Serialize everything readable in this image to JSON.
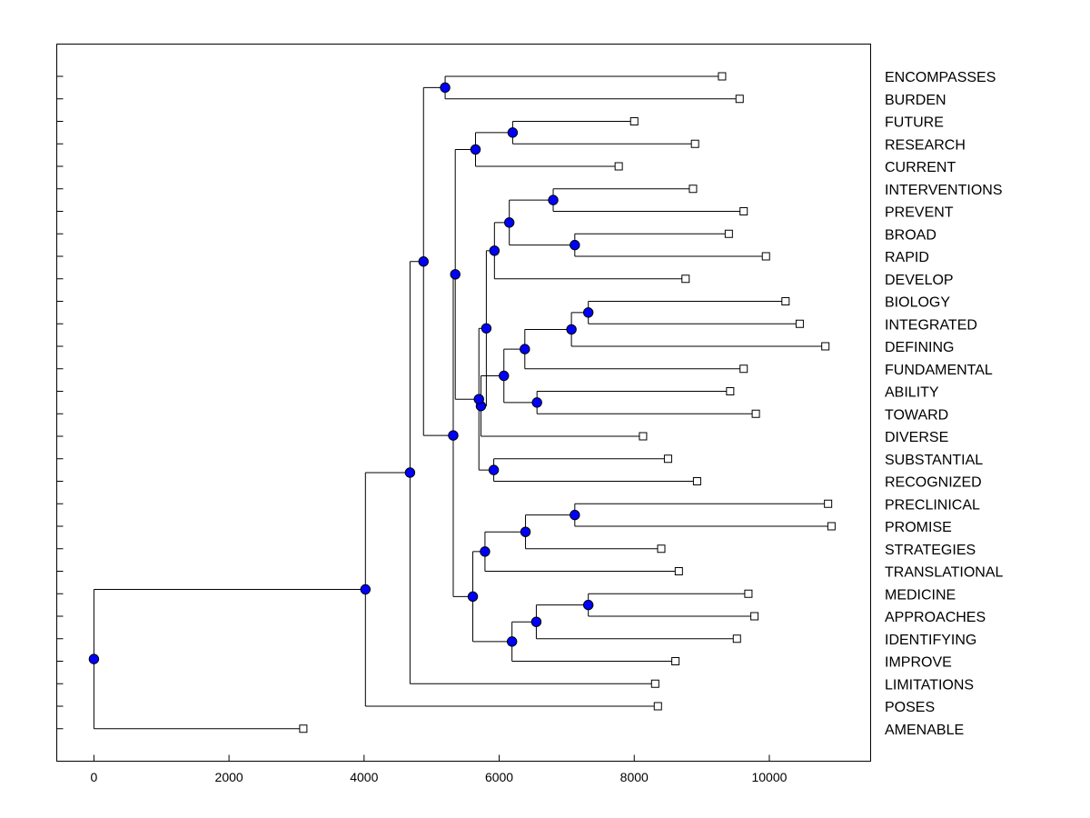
{
  "chart_data": {
    "type": "dendrogram",
    "orientation": "horizontal",
    "title": "",
    "xlabel": "",
    "ylabel": "",
    "xlim": [
      -550,
      11500
    ],
    "xticks": [
      0,
      2000,
      4000,
      6000,
      8000,
      10000
    ],
    "grid": false,
    "colors": {
      "node": "#0000ff",
      "leaf_fill": "#ffffff",
      "line": "#000000"
    },
    "leaves": [
      {
        "label": "ENCOMPASSES",
        "value": 9300
      },
      {
        "label": "BURDEN",
        "value": 9560
      },
      {
        "label": "FUTURE",
        "value": 8000
      },
      {
        "label": "RESEARCH",
        "value": 8900
      },
      {
        "label": "CURRENT",
        "value": 7770
      },
      {
        "label": "INTERVENTIONS",
        "value": 8870
      },
      {
        "label": "PREVENT",
        "value": 9620
      },
      {
        "label": "BROAD",
        "value": 9400
      },
      {
        "label": "RAPID",
        "value": 9950
      },
      {
        "label": "DEVELOP",
        "value": 8760
      },
      {
        "label": "BIOLOGY",
        "value": 10240
      },
      {
        "label": "INTEGRATED",
        "value": 10450
      },
      {
        "label": "DEFINING",
        "value": 10830
      },
      {
        "label": "FUNDAMENTAL",
        "value": 9620
      },
      {
        "label": "ABILITY",
        "value": 9420
      },
      {
        "label": "TOWARD",
        "value": 9800
      },
      {
        "label": "DIVERSE",
        "value": 8130
      },
      {
        "label": "SUBSTANTIAL",
        "value": 8500
      },
      {
        "label": "RECOGNIZED",
        "value": 8930
      },
      {
        "label": "PRECLINICAL",
        "value": 10870
      },
      {
        "label": "PROMISE",
        "value": 10920
      },
      {
        "label": "STRATEGIES",
        "value": 8400
      },
      {
        "label": "TRANSLATIONAL",
        "value": 8660
      },
      {
        "label": "MEDICINE",
        "value": 9690
      },
      {
        "label": "APPROACHES",
        "value": 9780
      },
      {
        "label": "IDENTIFYING",
        "value": 9520
      },
      {
        "label": "IMPROVE",
        "value": 8610
      },
      {
        "label": "LIMITATIONS",
        "value": 8310
      },
      {
        "label": "POSES",
        "value": 8350
      },
      {
        "label": "AMENABLE",
        "value": 3100
      }
    ],
    "merges": [
      {
        "id": "m_enc_bur",
        "value": 5200,
        "children": [
          0,
          1
        ]
      },
      {
        "id": "m_fut_res",
        "value": 6200,
        "children": [
          2,
          3
        ]
      },
      {
        "id": "m_frc",
        "value": 5650,
        "children": [
          "m_fut_res",
          4
        ]
      },
      {
        "id": "m_int_prev",
        "value": 6800,
        "children": [
          5,
          6
        ]
      },
      {
        "id": "m_broad_rapid",
        "value": 7120,
        "children": [
          7,
          8
        ]
      },
      {
        "id": "m_ipbr",
        "value": 6150,
        "children": [
          "m_int_prev",
          "m_broad_rapid"
        ]
      },
      {
        "id": "m_ipbrd",
        "value": 5930,
        "children": [
          "m_ipbr",
          9
        ]
      },
      {
        "id": "m_bio_int",
        "value": 7320,
        "children": [
          10,
          11
        ]
      },
      {
        "id": "m_bid",
        "value": 7070,
        "children": [
          "m_bio_int",
          12
        ]
      },
      {
        "id": "m_bidf",
        "value": 6380,
        "children": [
          "m_bid",
          13
        ]
      },
      {
        "id": "m_abi_tow",
        "value": 6560,
        "children": [
          14,
          15
        ]
      },
      {
        "id": "m_core",
        "value": 6070,
        "children": [
          "m_bidf",
          "m_abi_tow"
        ]
      },
      {
        "id": "m_core_div",
        "value": 5730,
        "children": [
          "m_core",
          16
        ]
      },
      {
        "id": "m_dev_group",
        "value": 5810,
        "children": [
          "m_ipbrd",
          "m_core_div"
        ]
      },
      {
        "id": "m_sub_rec",
        "value": 5920,
        "children": [
          17,
          18
        ]
      },
      {
        "id": "m_dg_sr",
        "value": 5700,
        "children": [
          "m_dev_group",
          "m_sub_rec"
        ]
      },
      {
        "id": "m_upper_mid",
        "value": 5350,
        "children": [
          "m_frc",
          "m_dg_sr"
        ]
      },
      {
        "id": "m_pre_pro",
        "value": 7120,
        "children": [
          19,
          20
        ]
      },
      {
        "id": "m_pps",
        "value": 6390,
        "children": [
          "m_pre_pro",
          21
        ]
      },
      {
        "id": "m_ppst",
        "value": 5790,
        "children": [
          "m_pps",
          22
        ]
      },
      {
        "id": "m_med_app",
        "value": 7320,
        "children": [
          23,
          24
        ]
      },
      {
        "id": "m_mai",
        "value": 6550,
        "children": [
          "m_med_app",
          25
        ]
      },
      {
        "id": "m_maii",
        "value": 6190,
        "children": [
          "m_mai",
          26
        ]
      },
      {
        "id": "m_lower",
        "value": 5610,
        "children": [
          "m_ppst",
          "m_maii"
        ]
      },
      {
        "id": "m_mid",
        "value": 5320,
        "children": [
          "m_upper_mid",
          "m_lower"
        ]
      },
      {
        "id": "m_top",
        "value": 4880,
        "children": [
          "m_enc_bur",
          "m_mid"
        ]
      },
      {
        "id": "m_lim",
        "value": 4680,
        "children": [
          "m_top",
          27
        ]
      },
      {
        "id": "m_poses",
        "value": 4020,
        "children": [
          "m_lim",
          28
        ]
      },
      {
        "id": "m_root",
        "value": 0,
        "children": [
          "m_poses",
          29
        ]
      }
    ]
  }
}
